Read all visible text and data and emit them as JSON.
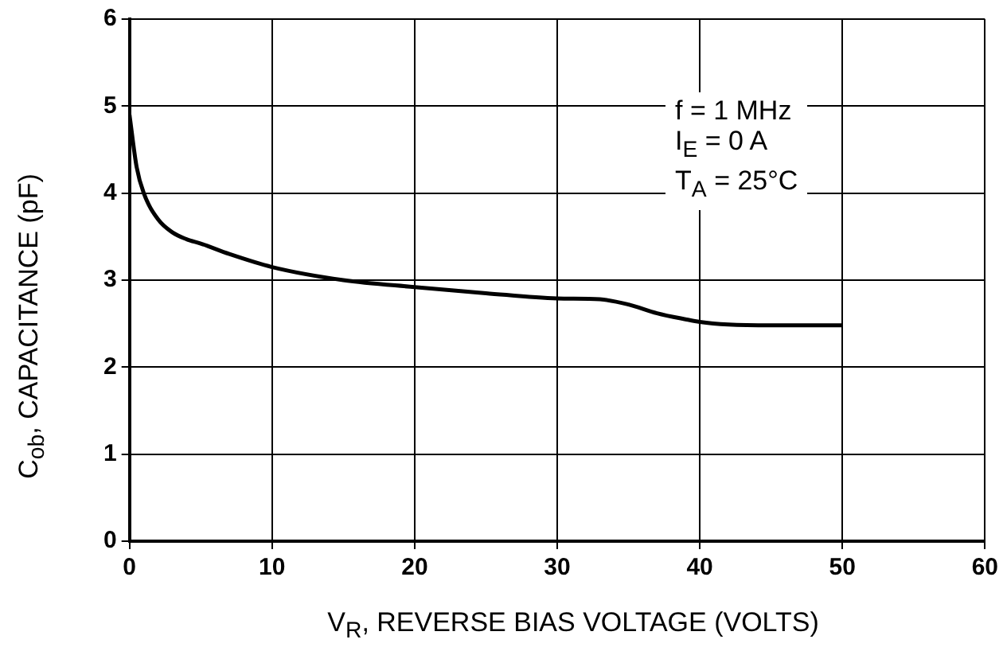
{
  "chart_data": {
    "type": "line",
    "xlabel": "V$_{R}$, REVERSE BIAS VOLTAGE (VOLTS)",
    "ylabel": "C$_{ob}$, CAPACITANCE (pF)",
    "annotations": [
      "f = 1 MHz",
      "I$_{E}$ = 0 A",
      "T$_{A}$ = 25°C"
    ],
    "xlim": [
      0,
      60
    ],
    "xticks": [
      0,
      10,
      20,
      30,
      40,
      50,
      60
    ],
    "ylim": [
      0,
      6
    ],
    "yticks": [
      0,
      1,
      2,
      3,
      4,
      5,
      6
    ],
    "grid": true,
    "marker": "none",
    "line_style": "solid",
    "series": [
      {
        "color": "#000000",
        "x": [
          0,
          0.5,
          1,
          2,
          3,
          4,
          5,
          7,
          10,
          15,
          20,
          25,
          30,
          33,
          35,
          37,
          39,
          40,
          42,
          45,
          50
        ],
        "values": [
          4.9,
          4.3,
          4.0,
          3.7,
          3.55,
          3.47,
          3.42,
          3.3,
          3.15,
          3.0,
          2.92,
          2.85,
          2.79,
          2.78,
          2.72,
          2.62,
          2.55,
          2.52,
          2.49,
          2.48,
          2.48
        ]
      }
    ]
  }
}
